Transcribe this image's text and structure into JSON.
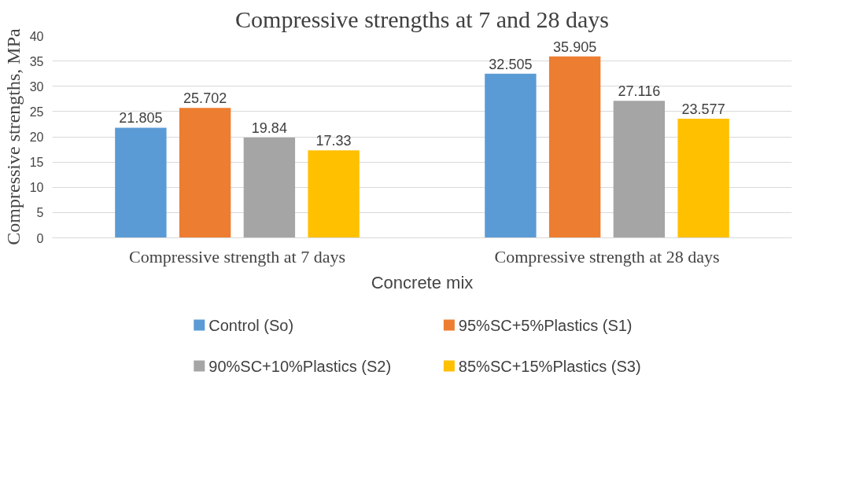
{
  "chart_data": {
    "type": "bar",
    "title": "Compressive strengths at 7 and 28 days",
    "xlabel": "Concrete mix",
    "ylabel": "Compressive strengths, MPa",
    "categories": [
      "Compressive strength at 7 days",
      "Compressive strength at 28 days"
    ],
    "series": [
      {
        "name": "Control (So)",
        "color": "#5b9bd5",
        "values": [
          21.805,
          32.505
        ]
      },
      {
        "name": "95%SC+5%Plastics (S1)",
        "color": "#ed7d31",
        "values": [
          25.702,
          35.905
        ]
      },
      {
        "name": "90%SC+10%Plastics (S2)",
        "color": "#a5a5a5",
        "values": [
          19.84,
          27.116
        ]
      },
      {
        "name": "85%SC+15%Plastics (S3)",
        "color": "#ffc000",
        "values": [
          17.33,
          23.577
        ]
      }
    ],
    "ylim": [
      0,
      40
    ],
    "yticks": [
      0,
      5,
      10,
      15,
      20,
      25,
      30,
      35,
      40
    ],
    "grid": "y",
    "legend": "bottom",
    "data_labels": true
  }
}
